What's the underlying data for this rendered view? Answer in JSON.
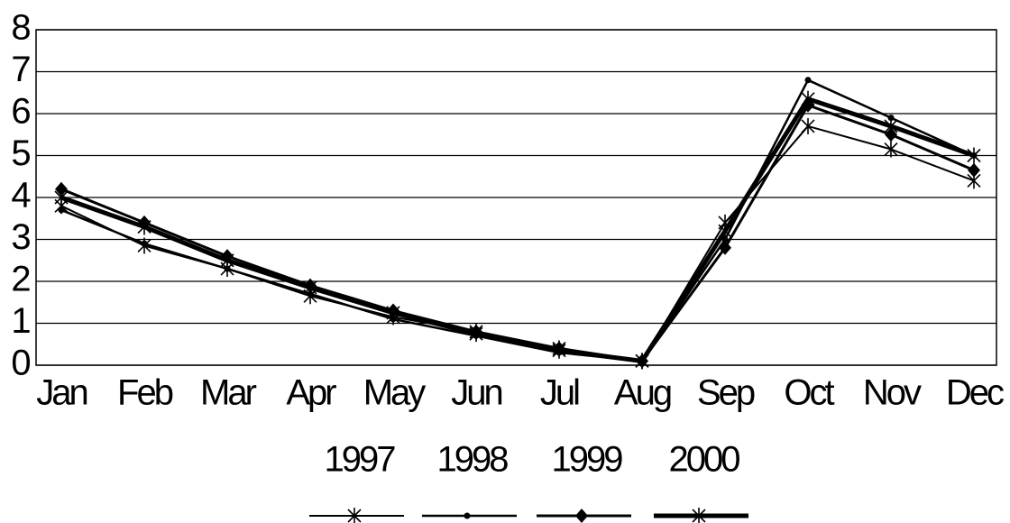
{
  "chart_data": {
    "type": "line",
    "categories": [
      "Jan",
      "Feb",
      "Mar",
      "Apr",
      "May",
      "Jun",
      "Jul",
      "Aug",
      "Sep",
      "Oct",
      "Nov",
      "Dec"
    ],
    "series": [
      {
        "name": "1997",
        "color": "#000000",
        "marker": "star",
        "line_width": 2,
        "values": [
          3.8,
          2.85,
          2.3,
          1.65,
          1.15,
          0.8,
          0.4,
          0.1,
          3.4,
          5.7,
          5.15,
          4.4
        ]
      },
      {
        "name": "1998",
        "color": "#000000",
        "marker": "dot",
        "line_width": 2.5,
        "values": [
          3.7,
          2.9,
          2.3,
          1.7,
          1.1,
          0.7,
          0.3,
          0.1,
          3.0,
          6.8,
          5.9,
          5.0
        ]
      },
      {
        "name": "1999",
        "color": "#000000",
        "marker": "diamond",
        "line_width": 3,
        "values": [
          4.2,
          3.4,
          2.6,
          1.9,
          1.3,
          0.8,
          0.4,
          0.1,
          2.8,
          6.2,
          5.5,
          4.65
        ]
      },
      {
        "name": "2000",
        "color": "#000000",
        "marker": "star",
        "line_width": 5,
        "values": [
          4.0,
          3.3,
          2.5,
          1.85,
          1.25,
          0.75,
          0.35,
          0.1,
          3.2,
          6.35,
          5.7,
          5.0
        ]
      }
    ],
    "ylim": [
      0,
      8
    ],
    "yticks": [
      0,
      1,
      2,
      3,
      4,
      5,
      6,
      7,
      8
    ],
    "grid": true,
    "legend": "bottom"
  }
}
